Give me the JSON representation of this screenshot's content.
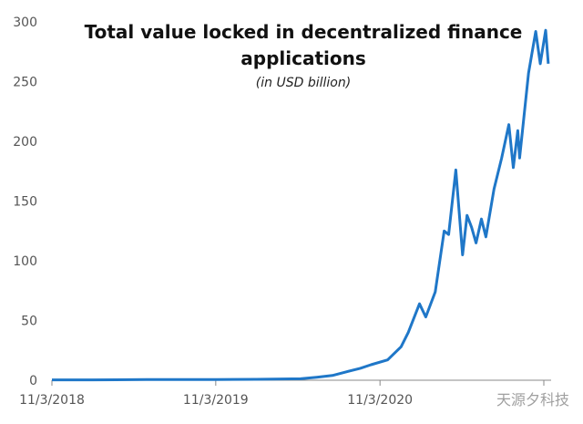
{
  "chart_data": {
    "type": "line",
    "title": "Total value locked in decentralized finance applications",
    "title_lines": [
      "Total value locked in decentralized finance",
      "applications"
    ],
    "subtitle": "(in USD billion)",
    "xlabel": "",
    "ylabel": "",
    "xlim": [
      "2018-11-03",
      "2021-11-20"
    ],
    "ylim": [
      0,
      300
    ],
    "yticks": [
      0,
      50,
      100,
      150,
      200,
      250,
      300
    ],
    "xticks": [
      {
        "date": "2018-11-03",
        "label": "11/3/2018"
      },
      {
        "date": "2019-11-03",
        "label": "11/3/2019"
      },
      {
        "date": "2020-11-03",
        "label": "11/3/2020"
      },
      {
        "date": "2021-11-03",
        "label": ""
      }
    ],
    "grid": false,
    "line_color": "#1f77c8",
    "series": [
      {
        "points": [
          [
            "2018-11-03",
            0.3
          ],
          [
            "2019-02-01",
            0.3
          ],
          [
            "2019-06-01",
            0.5
          ],
          [
            "2019-11-03",
            0.6
          ],
          [
            "2020-02-01",
            0.8
          ],
          [
            "2020-05-10",
            1.2
          ],
          [
            "2020-06-15",
            2.5
          ],
          [
            "2020-07-20",
            4
          ],
          [
            "2020-08-20",
            7
          ],
          [
            "2020-09-20",
            10
          ],
          [
            "2020-10-14",
            13
          ],
          [
            "2020-11-20",
            17
          ],
          [
            "2020-12-20",
            28
          ],
          [
            "2021-01-05",
            40
          ],
          [
            "2021-01-30",
            64
          ],
          [
            "2021-02-13",
            53
          ],
          [
            "2021-03-06",
            74
          ],
          [
            "2021-03-26",
            125
          ],
          [
            "2021-04-05",
            122
          ],
          [
            "2021-04-21",
            176
          ],
          [
            "2021-05-06",
            105
          ],
          [
            "2021-05-16",
            138
          ],
          [
            "2021-05-26",
            128
          ],
          [
            "2021-06-05",
            115
          ],
          [
            "2021-06-17",
            135
          ],
          [
            "2021-06-27",
            120
          ],
          [
            "2021-07-15",
            160
          ],
          [
            "2021-08-01",
            186
          ],
          [
            "2021-08-17",
            214
          ],
          [
            "2021-08-27",
            178
          ],
          [
            "2021-09-06",
            209
          ],
          [
            "2021-09-10",
            186
          ],
          [
            "2021-09-30",
            257
          ],
          [
            "2021-10-16",
            292
          ],
          [
            "2021-10-26",
            265
          ],
          [
            "2021-11-07",
            293
          ],
          [
            "2021-11-13",
            265
          ]
        ]
      }
    ]
  },
  "watermark": "天源夕科技"
}
